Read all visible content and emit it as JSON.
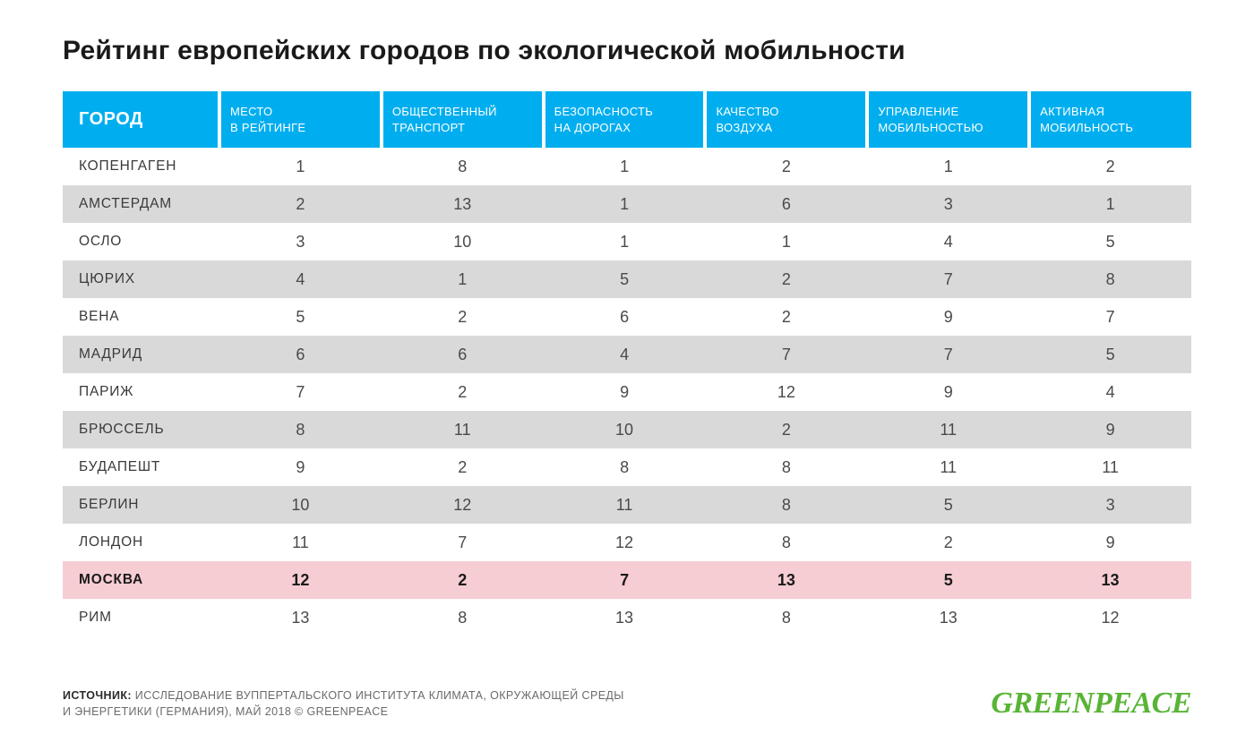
{
  "title": "Рейтинг европейских городов по экологической мобильности",
  "table": {
    "header_bg": "#00aeef",
    "header_text_color": "#ffffff",
    "stripe_color": "#d9d9d9",
    "highlight_color": "#f6cdd3",
    "city_header": "ГОРОД",
    "columns": [
      "МЕСТО\nВ РЕЙТИНГЕ",
      "ОБЩЕСТВЕННЫЙ\nТРАНСПОРТ",
      "БЕЗОПАСНОСТЬ\nНА ДОРОГАХ",
      "КАЧЕСТВО\nВОЗДУХА",
      "УПРАВЛЕНИЕ\nМОБИЛЬНОСТЬЮ",
      "АКТИВНАЯ\nМОБИЛЬНОСТЬ"
    ],
    "rows": [
      {
        "city": "КОПЕНГАГЕН",
        "values": [
          1,
          8,
          1,
          2,
          1,
          2
        ],
        "stripe": false,
        "highlight": false
      },
      {
        "city": "АМСТЕРДАМ",
        "values": [
          2,
          13,
          1,
          6,
          3,
          1
        ],
        "stripe": true,
        "highlight": false
      },
      {
        "city": "ОСЛО",
        "values": [
          3,
          10,
          1,
          1,
          4,
          5
        ],
        "stripe": false,
        "highlight": false
      },
      {
        "city": "ЦЮРИХ",
        "values": [
          4,
          1,
          5,
          2,
          7,
          8
        ],
        "stripe": true,
        "highlight": false
      },
      {
        "city": "ВЕНА",
        "values": [
          5,
          2,
          6,
          2,
          9,
          7
        ],
        "stripe": false,
        "highlight": false
      },
      {
        "city": "МАДРИД",
        "values": [
          6,
          6,
          4,
          7,
          7,
          5
        ],
        "stripe": true,
        "highlight": false
      },
      {
        "city": "ПАРИЖ",
        "values": [
          7,
          2,
          9,
          12,
          9,
          4
        ],
        "stripe": false,
        "highlight": false
      },
      {
        "city": "БРЮССЕЛЬ",
        "values": [
          8,
          11,
          10,
          2,
          11,
          9
        ],
        "stripe": true,
        "highlight": false
      },
      {
        "city": "БУДАПЕШТ",
        "values": [
          9,
          2,
          8,
          8,
          11,
          11
        ],
        "stripe": false,
        "highlight": false
      },
      {
        "city": "БЕРЛИН",
        "values": [
          10,
          12,
          11,
          8,
          5,
          3
        ],
        "stripe": true,
        "highlight": false
      },
      {
        "city": "ЛОНДОН",
        "values": [
          11,
          7,
          12,
          8,
          2,
          9
        ],
        "stripe": false,
        "highlight": false
      },
      {
        "city": "МОСКВА",
        "values": [
          12,
          2,
          7,
          13,
          5,
          13
        ],
        "stripe": false,
        "highlight": true
      },
      {
        "city": "РИМ",
        "values": [
          13,
          8,
          13,
          8,
          13,
          12
        ],
        "stripe": false,
        "highlight": false
      }
    ]
  },
  "source": {
    "label": "ИСТОЧНИК:",
    "line1": " ИССЛЕДОВАНИЕ ВУППЕРТАЛЬСКОГО ИНСТИТУТА КЛИМАТА, ОКРУЖАЮЩЕЙ СРЕДЫ",
    "line2": "И ЭНЕРГЕТИКИ (ГЕРМАНИЯ), МАЙ 2018 © GREENPEACE"
  },
  "logo_text": "GREENPEACE",
  "logo_color": "#59b436"
}
